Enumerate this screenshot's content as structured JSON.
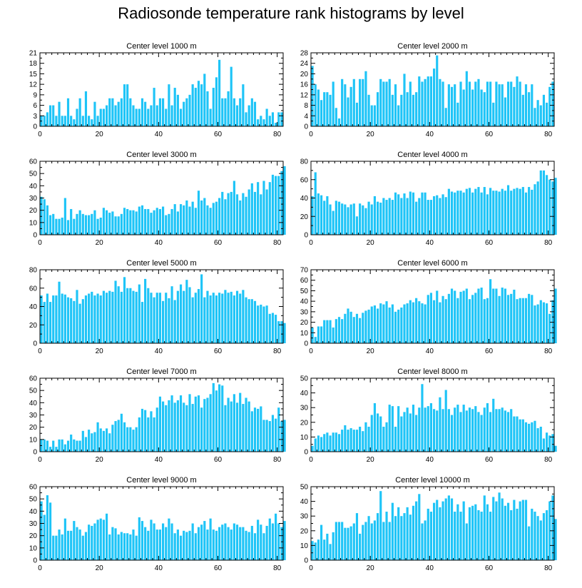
{
  "figure": {
    "title": "Radiosonde temperature rank histograms by level",
    "bar_color": "#1ec4f7",
    "axis_color": "#000000"
  },
  "chart_data": [
    {
      "type": "bar",
      "title": "Center level 1000 m",
      "xlim": [
        0,
        82
      ],
      "ylim": [
        0,
        21
      ],
      "xticks": [
        0,
        20,
        40,
        60,
        80
      ],
      "yticks": [
        0,
        3,
        6,
        9,
        12,
        15,
        18,
        21
      ],
      "values": [
        3,
        3,
        4,
        6,
        6,
        3,
        7,
        3,
        3,
        8,
        3,
        2,
        5,
        8,
        3,
        10,
        3,
        2,
        7,
        3,
        5,
        5,
        6,
        8,
        8,
        6,
        7,
        8,
        12,
        12,
        8,
        6,
        5,
        5,
        8,
        7,
        5,
        6,
        11,
        6,
        8,
        8,
        5,
        12,
        6,
        11,
        9,
        5,
        7,
        8,
        9,
        12,
        11,
        13,
        12,
        15,
        10,
        5,
        11,
        14,
        19,
        8,
        8,
        10,
        17,
        8,
        6,
        8,
        12,
        4,
        6,
        8,
        7,
        2,
        3,
        2,
        5,
        3,
        4,
        1,
        4,
        4
      ]
    },
    {
      "type": "bar",
      "title": "Center level 2000 m",
      "xlim": [
        0,
        82
      ],
      "ylim": [
        0,
        28
      ],
      "xticks": [
        0,
        20,
        40,
        60,
        80
      ],
      "yticks": [
        0,
        4,
        8,
        12,
        16,
        20,
        24,
        28
      ],
      "values": [
        23,
        16,
        14,
        10,
        13,
        13,
        12,
        17,
        7,
        3,
        18,
        16,
        11,
        15,
        18,
        9,
        18,
        18,
        21,
        12,
        8,
        8,
        13,
        18,
        17,
        17,
        18,
        12,
        16,
        8,
        12,
        20,
        13,
        17,
        12,
        13,
        19,
        17,
        18,
        19,
        19,
        22,
        27,
        18,
        17,
        7,
        16,
        15,
        16,
        9,
        17,
        14,
        21,
        17,
        14,
        17,
        18,
        14,
        13,
        17,
        17,
        9,
        17,
        16,
        16,
        11,
        17,
        17,
        15,
        19,
        17,
        12,
        16,
        13,
        16,
        7,
        10,
        8,
        12,
        9,
        15,
        17
      ]
    },
    {
      "type": "bar",
      "title": "Center level 3000 m",
      "xlim": [
        0,
        82
      ],
      "ylim": [
        0,
        60
      ],
      "xticks": [
        0,
        20,
        40,
        60,
        80
      ],
      "yticks": [
        0,
        10,
        20,
        30,
        40,
        50,
        60
      ],
      "values": [
        31,
        29,
        24,
        16,
        17,
        13,
        13,
        14,
        30,
        12,
        21,
        13,
        17,
        20,
        17,
        16,
        16,
        17,
        20,
        13,
        14,
        22,
        20,
        18,
        19,
        15,
        15,
        17,
        22,
        21,
        20,
        20,
        19,
        23,
        24,
        21,
        21,
        18,
        20,
        22,
        21,
        23,
        16,
        17,
        21,
        25,
        19,
        25,
        24,
        28,
        23,
        27,
        22,
        36,
        28,
        30,
        24,
        22,
        26,
        27,
        30,
        35,
        29,
        34,
        35,
        44,
        33,
        28,
        34,
        31,
        37,
        42,
        35,
        43,
        33,
        44,
        37,
        43,
        49,
        48,
        48,
        52,
        56
      ]
    },
    {
      "type": "bar",
      "title": "Center level 4000 m",
      "xlim": [
        0,
        82
      ],
      "ylim": [
        0,
        80
      ],
      "xticks": [
        0,
        20,
        40,
        60,
        80
      ],
      "yticks": [
        0,
        20,
        40,
        60,
        80
      ],
      "values": [
        42,
        68,
        45,
        43,
        37,
        42,
        33,
        26,
        37,
        36,
        34,
        33,
        30,
        33,
        34,
        20,
        34,
        32,
        29,
        36,
        33,
        42,
        36,
        35,
        40,
        38,
        40,
        38,
        46,
        44,
        40,
        45,
        40,
        47,
        46,
        36,
        40,
        46,
        46,
        38,
        38,
        42,
        43,
        40,
        44,
        41,
        50,
        47,
        46,
        48,
        48,
        46,
        50,
        51,
        46,
        50,
        52,
        46,
        52,
        44,
        51,
        48,
        48,
        47,
        50,
        48,
        54,
        48,
        50,
        51,
        50,
        52,
        46,
        52,
        49,
        55,
        58,
        70,
        70,
        65,
        60,
        58,
        62
      ]
    },
    {
      "type": "bar",
      "title": "Center level 5000 m",
      "xlim": [
        0,
        82
      ],
      "ylim": [
        0,
        80
      ],
      "xticks": [
        0,
        20,
        40,
        60,
        80
      ],
      "yticks": [
        0,
        20,
        40,
        60,
        80
      ],
      "values": [
        52,
        45,
        54,
        45,
        52,
        52,
        67,
        54,
        53,
        50,
        49,
        46,
        58,
        43,
        48,
        52,
        54,
        56,
        52,
        54,
        52,
        57,
        55,
        57,
        56,
        68,
        62,
        56,
        72,
        60,
        60,
        57,
        56,
        64,
        45,
        70,
        60,
        55,
        50,
        55,
        55,
        46,
        55,
        49,
        62,
        47,
        57,
        64,
        57,
        69,
        61,
        50,
        55,
        59,
        75,
        50,
        57,
        52,
        55,
        52,
        55,
        54,
        58,
        55,
        56,
        52,
        57,
        54,
        58,
        50,
        48,
        48,
        46,
        41,
        42,
        40,
        41,
        32,
        33,
        31,
        24,
        24,
        22
      ]
    },
    {
      "type": "bar",
      "title": "Center level 6000 m",
      "xlim": [
        0,
        82
      ],
      "ylim": [
        0,
        70
      ],
      "xticks": [
        0,
        20,
        40,
        60,
        80
      ],
      "yticks": [
        0,
        10,
        20,
        30,
        40,
        50,
        60,
        70
      ],
      "values": [
        15,
        6,
        16,
        16,
        22,
        22,
        22,
        15,
        23,
        25,
        23,
        28,
        33,
        30,
        25,
        28,
        24,
        29,
        31,
        32,
        35,
        36,
        33,
        38,
        37,
        40,
        34,
        37,
        30,
        32,
        34,
        37,
        38,
        41,
        39,
        43,
        40,
        38,
        37,
        46,
        48,
        41,
        50,
        39,
        45,
        42,
        47,
        52,
        50,
        43,
        49,
        50,
        52,
        42,
        46,
        48,
        52,
        53,
        42,
        43,
        61,
        52,
        52,
        45,
        53,
        52,
        46,
        47,
        51,
        42,
        43,
        43,
        43,
        47,
        46,
        36,
        37,
        41,
        39,
        38,
        28,
        41,
        52
      ]
    },
    {
      "type": "bar",
      "title": "Center level 7000 m",
      "xlim": [
        0,
        82
      ],
      "ylim": [
        0,
        60
      ],
      "xticks": [
        0,
        20,
        40,
        60,
        80
      ],
      "yticks": [
        0,
        10,
        20,
        30,
        40,
        50,
        60
      ],
      "values": [
        10,
        10,
        9,
        4,
        9,
        4,
        10,
        10,
        6,
        9,
        14,
        10,
        9,
        9,
        17,
        12,
        18,
        15,
        16,
        24,
        19,
        17,
        19,
        15,
        22,
        25,
        26,
        31,
        24,
        20,
        20,
        18,
        20,
        28,
        35,
        34,
        28,
        33,
        28,
        36,
        45,
        41,
        38,
        42,
        46,
        40,
        42,
        46,
        40,
        38,
        47,
        39,
        45,
        46,
        36,
        43,
        44,
        47,
        56,
        50,
        55,
        54,
        38,
        44,
        41,
        47,
        40,
        48,
        39,
        44,
        41,
        33,
        36,
        35,
        37,
        26,
        26,
        25,
        30,
        27,
        36,
        25,
        26
      ]
    },
    {
      "type": "bar",
      "title": "Center level 8000 m",
      "xlim": [
        0,
        82
      ],
      "ylim": [
        0,
        50
      ],
      "xticks": [
        0,
        20,
        40,
        60,
        80
      ],
      "yticks": [
        0,
        10,
        20,
        30,
        40,
        50
      ],
      "values": [
        4,
        9,
        11,
        10,
        12,
        13,
        11,
        13,
        13,
        12,
        15,
        18,
        15,
        16,
        15,
        15,
        17,
        14,
        20,
        17,
        25,
        33,
        26,
        24,
        17,
        20,
        32,
        31,
        17,
        31,
        24,
        27,
        30,
        26,
        32,
        25,
        30,
        46,
        30,
        31,
        33,
        29,
        28,
        37,
        29,
        42,
        29,
        25,
        30,
        32,
        27,
        32,
        28,
        30,
        29,
        31,
        27,
        25,
        30,
        33,
        27,
        36,
        29,
        29,
        30,
        28,
        27,
        29,
        24,
        24,
        22,
        22,
        20,
        19,
        20,
        21,
        16,
        17,
        9,
        13,
        11,
        12,
        4
      ]
    },
    {
      "type": "bar",
      "title": "Center level 9000 m",
      "xlim": [
        0,
        82
      ],
      "ylim": [
        0,
        60
      ],
      "xticks": [
        0,
        20,
        40,
        60,
        80
      ],
      "yticks": [
        0,
        10,
        20,
        30,
        40,
        50,
        60
      ],
      "values": [
        48,
        37,
        53,
        47,
        20,
        20,
        25,
        21,
        34,
        24,
        24,
        32,
        27,
        25,
        20,
        23,
        29,
        28,
        30,
        33,
        34,
        33,
        38,
        21,
        27,
        26,
        21,
        23,
        22,
        22,
        21,
        25,
        20,
        35,
        32,
        27,
        24,
        33,
        30,
        25,
        25,
        30,
        27,
        34,
        30,
        22,
        25,
        20,
        24,
        23,
        24,
        30,
        22,
        27,
        29,
        32,
        25,
        34,
        25,
        24,
        27,
        29,
        30,
        27,
        25,
        30,
        29,
        27,
        27,
        24,
        23,
        28,
        22,
        33,
        29,
        22,
        28,
        34,
        30,
        38,
        30,
        27,
        32
      ]
    },
    {
      "type": "bar",
      "title": "Center level 10000 m",
      "xlim": [
        0,
        82
      ],
      "ylim": [
        0,
        50
      ],
      "xticks": [
        0,
        20,
        40,
        60,
        80
      ],
      "yticks": [
        0,
        10,
        20,
        30,
        40,
        50
      ],
      "values": [
        13,
        12,
        14,
        24,
        14,
        18,
        11,
        19,
        26,
        26,
        26,
        22,
        22,
        23,
        25,
        32,
        18,
        24,
        26,
        30,
        25,
        27,
        32,
        47,
        26,
        33,
        26,
        39,
        30,
        36,
        30,
        32,
        36,
        31,
        37,
        40,
        45,
        25,
        27,
        35,
        33,
        39,
        41,
        36,
        40,
        42,
        44,
        42,
        33,
        38,
        33,
        40,
        25,
        36,
        37,
        38,
        34,
        33,
        44,
        38,
        33,
        43,
        40,
        46,
        42,
        37,
        39,
        34,
        41,
        35,
        40,
        41,
        41,
        23,
        35,
        33,
        30,
        27,
        32,
        34,
        40,
        44,
        28
      ]
    }
  ]
}
